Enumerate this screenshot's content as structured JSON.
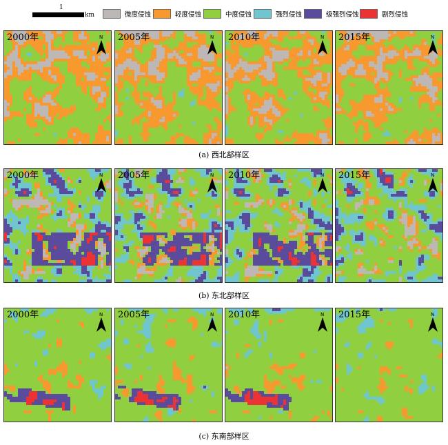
{
  "legend": {
    "scale_number": "1",
    "scale_unit": "km",
    "items": [
      {
        "label": "微度侵蚀",
        "color": "#bdb7b5"
      },
      {
        "label": "轻度侵蚀",
        "color": "#f7992f"
      },
      {
        "label": "中度侵蚀",
        "color": "#8fcf40"
      },
      {
        "label": "强烈侵蚀",
        "color": "#6fc6cf"
      },
      {
        "label": "级强烈侵蚀",
        "color": "#5a4b9c"
      },
      {
        "label": "剧烈侵蚀",
        "color": "#ec3333"
      }
    ]
  },
  "north_label": "N",
  "rows": [
    {
      "caption": "(a) 西北部样区",
      "years": [
        "2000年",
        "2005年",
        "2010年",
        "2015年"
      ]
    },
    {
      "caption": "(b) 东北部样区",
      "years": [
        "2000年",
        "2005年",
        "2010年",
        "2015年"
      ]
    },
    {
      "caption": "(c)  东南部样区",
      "years": [
        "2000年",
        "2005年",
        "2010年",
        "2015年"
      ]
    }
  ]
}
